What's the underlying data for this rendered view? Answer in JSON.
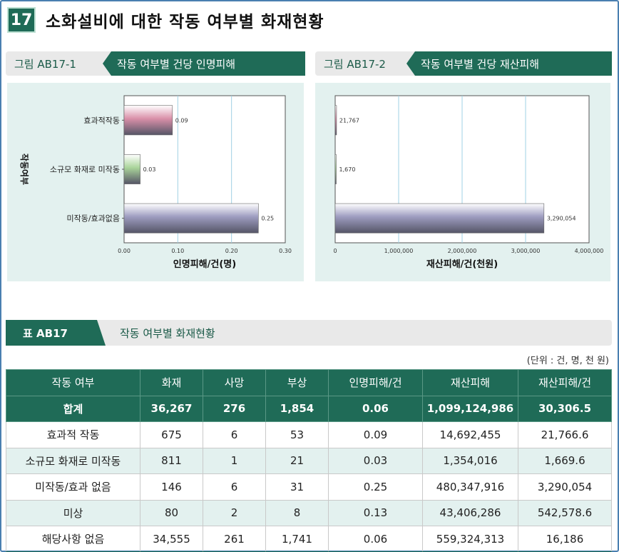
{
  "section": {
    "number": "17",
    "title": "소화설비에 대한 작동 여부별 화재현황"
  },
  "figure1": {
    "tag": "그림 AB17-1",
    "title": "작동 여부별 건당 인명피해",
    "chart_data": {
      "type": "bar",
      "orientation": "horizontal",
      "categories": [
        "효과적작동",
        "소규모 화재로 미작동",
        "미작동/효과없음"
      ],
      "values": [
        0.09,
        0.03,
        0.25
      ],
      "value_labels": [
        "0.09",
        "0.03",
        "0.25"
      ],
      "bar_colors": [
        "#d98fa8",
        "#a9d49a",
        "#9d9cc0"
      ],
      "xlabel": "인명피해/건(명)",
      "ylabel": "작동여부",
      "xlim": [
        0,
        0.3
      ],
      "xticks": [
        "0.00",
        "0.10",
        "0.20",
        "0.30"
      ],
      "grid": true
    }
  },
  "figure2": {
    "tag": "그림 AB17-2",
    "title": "작동 여부별 건당 재산피해",
    "chart_data": {
      "type": "bar",
      "orientation": "horizontal",
      "categories": [
        "효과적작동",
        "소규모 화재로 미작동",
        "미작동/효과없음"
      ],
      "values": [
        21767,
        1670,
        3290054
      ],
      "value_labels": [
        "21,767",
        "1,670",
        "3,290,054"
      ],
      "bar_colors": [
        "#d98fa8",
        "#a9d49a",
        "#9d9cc0"
      ],
      "xlabel": "재산피해/건(천원)",
      "xlim": [
        0,
        4000000
      ],
      "xticks": [
        "0",
        "1,000,000",
        "2,000,000",
        "3,000,000",
        "4,000,000"
      ],
      "grid": true
    }
  },
  "table": {
    "tag": "표 AB17",
    "title": "작동 여부별 화재현황",
    "unit": "(단위 : 건, 명, 천 원)",
    "columns": [
      "작동 여부",
      "화재",
      "사망",
      "부상",
      "인명피해/건",
      "재산피해",
      "재산피해/건"
    ],
    "rows": [
      [
        "합계",
        "36,267",
        "276",
        "1,854",
        "0.06",
        "1,099,124,986",
        "30,306.5"
      ],
      [
        "효과적 작동",
        "675",
        "6",
        "53",
        "0.09",
        "14,692,455",
        "21,766.6"
      ],
      [
        "소규모 화재로 미작동",
        "811",
        "1",
        "21",
        "0.03",
        "1,354,016",
        "1,669.6"
      ],
      [
        "미작동/효과 없음",
        "146",
        "6",
        "31",
        "0.25",
        "480,347,916",
        "3,290,054"
      ],
      [
        "미상",
        "80",
        "2",
        "8",
        "0.13",
        "43,406,286",
        "542,578.6"
      ],
      [
        "해당사항 없음",
        "34,555",
        "261",
        "1,741",
        "0.06",
        "559,324,313",
        "16,186"
      ]
    ]
  }
}
